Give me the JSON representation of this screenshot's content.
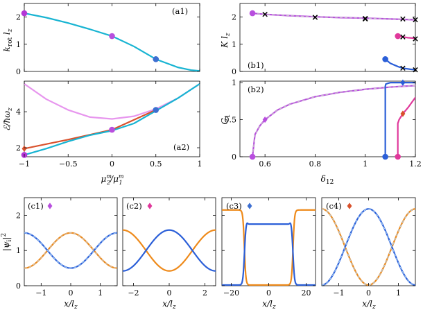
{
  "colors": {
    "cyan": "#18b4d2",
    "purple": "#b437d6",
    "magenta": "#e0389b",
    "violet": "#b84fde",
    "violet_dash": "#c8c8c8",
    "lightpink": "#e796ee",
    "orange": "#ee8a1a",
    "orange_red": "#d9512c",
    "blue": "#2b5fd8",
    "blue_dash": "#a9d0f5",
    "mid_blue": "#3d6fd1",
    "cross": "#000000"
  },
  "chart_data": [
    {
      "id": "a1",
      "type": "line",
      "panel_label": "(a1)",
      "xlim": [
        -1,
        1
      ],
      "ylim": [
        0,
        2.5
      ],
      "xticks": [
        -1,
        -0.5,
        0,
        0.5,
        1
      ],
      "yticks": [
        0,
        1,
        2
      ],
      "ytick_labels": [
        "0",
        "1",
        "2"
      ],
      "xlabel": "",
      "ylabel": "k_rot l_z",
      "series": [
        {
          "name": "k_rot",
          "color_key": "cyan",
          "width": 2.2,
          "x": [
            -1,
            -0.75,
            -0.5,
            -0.25,
            0,
            0.25,
            0.5,
            0.75,
            0.9,
            1
          ],
          "y": [
            2.14,
            1.98,
            1.78,
            1.55,
            1.3,
            0.92,
            0.45,
            0.15,
            0.05,
            0.02
          ]
        }
      ],
      "markers": [
        {
          "x": -1,
          "y": 2.14,
          "shape": "circle",
          "color_key": "purple"
        },
        {
          "x": 0,
          "y": 1.3,
          "shape": "circle",
          "color_key": "violet"
        },
        {
          "x": 0.5,
          "y": 0.45,
          "shape": "circle",
          "color_key": "mid_blue"
        }
      ]
    },
    {
      "id": "a2",
      "type": "line",
      "panel_label": "(a2)",
      "xlim": [
        -1,
        1
      ],
      "ylim": [
        1.5,
        5.7
      ],
      "xticks": [
        -1,
        -0.5,
        0,
        0.5,
        1
      ],
      "yticks": [
        2,
        4
      ],
      "xtick_labels": [
        "-1",
        "-0.5",
        "0",
        "0.5",
        "1"
      ],
      "ytick_labels": [
        "2",
        "4"
      ],
      "xlabel": "μ_2^m/μ_1^m",
      "ylabel": "ℰ/ħω_z",
      "series": [
        {
          "name": "upper",
          "color_key": "lightpink",
          "width": 2.2,
          "x": [
            -1,
            -0.75,
            -0.5,
            -0.25,
            0,
            0.25,
            0.5,
            0.75,
            1
          ],
          "y": [
            5.55,
            4.7,
            4.1,
            3.7,
            3.6,
            3.75,
            4.15,
            4.75,
            5.55
          ]
        },
        {
          "name": "lower-orange",
          "color_key": "orange_red",
          "width": 2.2,
          "x": [
            -1,
            -0.5,
            0,
            0.5
          ],
          "y": [
            1.95,
            2.45,
            3.0,
            4.1
          ]
        },
        {
          "name": "lower-cyan",
          "color_key": "cyan",
          "width": 2.2,
          "x": [
            -1,
            -0.75,
            -0.5,
            -0.25,
            0,
            0.25,
            0.5,
            0.75,
            1
          ],
          "y": [
            1.6,
            1.95,
            2.35,
            2.7,
            2.95,
            3.35,
            4.05,
            4.75,
            5.55
          ]
        }
      ],
      "markers": [
        {
          "x": -1,
          "y": 1.95,
          "shape": "diamond",
          "color_key": "orange_red"
        },
        {
          "x": -1,
          "y": 1.6,
          "shape": "circle",
          "color_key": "purple"
        },
        {
          "x": 0,
          "y": 3.0,
          "shape": "circle",
          "color_key": "violet"
        },
        {
          "x": 0.5,
          "y": 4.1,
          "shape": "circle",
          "color_key": "mid_blue"
        }
      ]
    },
    {
      "id": "b1",
      "type": "line",
      "panel_label": "(b1)",
      "xlim": [
        0.5,
        1.2
      ],
      "ylim": [
        0,
        2.5
      ],
      "xticks": [
        0.6,
        0.8,
        1,
        1.2
      ],
      "yticks": [
        0,
        1,
        2
      ],
      "ytick_labels": [
        "0",
        "1",
        "2"
      ],
      "xlabel": "",
      "ylabel": "K l_z",
      "series": [
        {
          "name": "violet",
          "color_key": "violet",
          "dash_key": "violet_dash",
          "width": 2.2,
          "x": [
            0.55,
            0.6,
            0.7,
            0.8,
            0.9,
            1.0,
            1.1,
            1.2
          ],
          "y": [
            2.14,
            2.1,
            2.05,
            2.01,
            1.98,
            1.96,
            1.93,
            1.9
          ]
        },
        {
          "name": "magenta",
          "color_key": "magenta",
          "width": 2.2,
          "x": [
            1.13,
            1.15,
            1.17,
            1.2
          ],
          "y": [
            1.3,
            1.27,
            1.24,
            1.22
          ]
        },
        {
          "name": "blue",
          "color_key": "blue",
          "width": 2.2,
          "x": [
            1.08,
            1.1,
            1.13,
            1.15,
            1.18,
            1.2
          ],
          "y": [
            0.45,
            0.3,
            0.18,
            0.12,
            0.08,
            0.06
          ]
        }
      ],
      "markers": [
        {
          "x": 0.55,
          "y": 2.14,
          "shape": "circle",
          "color_key": "violet"
        },
        {
          "x": 1.13,
          "y": 1.3,
          "shape": "circle",
          "color_key": "magenta"
        },
        {
          "x": 1.08,
          "y": 0.45,
          "shape": "circle",
          "color_key": "blue"
        },
        {
          "x": 0.6,
          "y": 2.1,
          "shape": "cross",
          "color_key": "cross"
        },
        {
          "x": 0.8,
          "y": 1.99,
          "shape": "cross",
          "color_key": "cross"
        },
        {
          "x": 1.0,
          "y": 1.95,
          "shape": "cross",
          "color_key": "cross"
        },
        {
          "x": 1.0,
          "y": 1.93,
          "shape": "cross",
          "color_key": "cross"
        },
        {
          "x": 1.15,
          "y": 1.93,
          "shape": "cross",
          "color_key": "cross"
        },
        {
          "x": 1.2,
          "y": 1.9,
          "shape": "cross",
          "color_key": "cross"
        },
        {
          "x": 1.15,
          "y": 1.27,
          "shape": "cross",
          "color_key": "cross"
        },
        {
          "x": 1.2,
          "y": 1.2,
          "shape": "cross",
          "color_key": "cross"
        },
        {
          "x": 1.15,
          "y": 0.12,
          "shape": "cross",
          "color_key": "cross"
        },
        {
          "x": 1.2,
          "y": 0.06,
          "shape": "cross",
          "color_key": "cross"
        }
      ]
    },
    {
      "id": "b2",
      "type": "line",
      "panel_label": "(b2)",
      "xlim": [
        0.5,
        1.2
      ],
      "ylim": [
        0,
        1.02
      ],
      "xticks": [
        0.6,
        0.8,
        1,
        1.2
      ],
      "yticks": [
        0,
        0.5,
        1
      ],
      "xtick_labels": [
        "0.6",
        "0.8",
        "1",
        "1.2"
      ],
      "ytick_labels": [
        "0",
        "0.5",
        "1"
      ],
      "xlabel": "δ_12",
      "ylabel": "C_1",
      "series": [
        {
          "name": "violet",
          "color_key": "violet",
          "dash_key": "violet_dash",
          "width": 2.2,
          "x": [
            0.55,
            0.56,
            0.58,
            0.6,
            0.65,
            0.7,
            0.8,
            0.9,
            1.0,
            1.1,
            1.2
          ],
          "y": [
            0,
            0.3,
            0.42,
            0.5,
            0.63,
            0.71,
            0.81,
            0.87,
            0.91,
            0.94,
            0.96
          ]
        },
        {
          "name": "blue",
          "color_key": "blue",
          "width": 2.2,
          "x": [
            1.08,
            1.08,
            1.082,
            1.09,
            1.1,
            1.15,
            1.2
          ],
          "y": [
            0,
            0.95,
            0.98,
            0.99,
            1.0,
            1.0,
            1.0
          ]
        },
        {
          "name": "magenta",
          "color_key": "magenta",
          "width": 2.2,
          "x": [
            1.13,
            1.13,
            1.135,
            1.15,
            1.17,
            1.2
          ],
          "y": [
            0,
            0.45,
            0.5,
            0.58,
            0.66,
            0.8
          ]
        }
      ],
      "markers": [
        {
          "x": 0.55,
          "y": 0,
          "shape": "circle",
          "color_key": "violet"
        },
        {
          "x": 0.6,
          "y": 0.5,
          "shape": "diamond",
          "color_key": "violet"
        },
        {
          "x": 1.08,
          "y": 0,
          "shape": "circle",
          "color_key": "blue"
        },
        {
          "x": 1.15,
          "y": 1.0,
          "shape": "diamond",
          "color_key": "blue"
        },
        {
          "x": 1.13,
          "y": 0,
          "shape": "circle",
          "color_key": "magenta"
        },
        {
          "x": 1.15,
          "y": 0.58,
          "shape": "diamond",
          "color_key": "orange_red"
        }
      ]
    },
    {
      "id": "c1",
      "type": "line",
      "panel_label": "(c1)",
      "label_marker": {
        "shape": "diamond",
        "color_key": "violet"
      },
      "xlim": [
        -1.57,
        1.57
      ],
      "ylim": [
        0,
        2.5
      ],
      "xticks": [
        -1,
        0,
        1
      ],
      "yticks": [
        0,
        1,
        2
      ],
      "xtick_labels": [
        "-1",
        "0",
        "1"
      ],
      "ytick_labels": [
        "0",
        "1",
        "2"
      ],
      "xlabel": "x/l_z",
      "ylabel": "|ψ_i|^2",
      "series": [
        {
          "name": "orange",
          "color_key": "orange",
          "dash_key": "violet_dash",
          "width": 2.2,
          "fn": {
            "kind": "cos",
            "mid": 1.0,
            "amp": 0.5,
            "k": 2.0
          }
        },
        {
          "name": "blue",
          "color_key": "blue",
          "dash_key": "blue_dash",
          "width": 2.2,
          "fn": {
            "kind": "cos",
            "mid": 1.0,
            "amp": -0.5,
            "k": 2.0
          }
        }
      ]
    },
    {
      "id": "c2",
      "type": "line",
      "panel_label": "(c2)",
      "label_marker": {
        "shape": "diamond",
        "color_key": "magenta"
      },
      "xlim": [
        -2.6,
        2.6
      ],
      "ylim": [
        0,
        2.5
      ],
      "xticks": [
        -2,
        0,
        2
      ],
      "yticks": [
        0,
        1,
        2
      ],
      "xtick_labels": [
        "-2",
        "0",
        "2"
      ],
      "ytick_labels": [],
      "xlabel": "x/l_z",
      "ylabel": "",
      "series": [
        {
          "name": "orange",
          "color_key": "orange",
          "width": 2.2,
          "fn": {
            "kind": "cos",
            "mid": 1.0,
            "amp": -0.58,
            "k": 1.21
          }
        },
        {
          "name": "blue",
          "color_key": "blue",
          "width": 2.2,
          "fn": {
            "kind": "cos",
            "mid": 1.0,
            "amp": 0.58,
            "k": 1.21
          }
        }
      ]
    },
    {
      "id": "c3",
      "type": "line",
      "panel_label": "(c3)",
      "label_marker": {
        "shape": "diamond",
        "color_key": "mid_blue"
      },
      "xlim": [
        -25,
        25
      ],
      "ylim": [
        0,
        2.5
      ],
      "xticks": [
        -20,
        0,
        20
      ],
      "yticks": [
        0,
        1,
        2
      ],
      "xtick_labels": [
        "-20",
        "0",
        "20"
      ],
      "ytick_labels": [],
      "xlabel": "x/l_z",
      "ylabel": "",
      "series": [
        {
          "name": "orange",
          "color_key": "orange",
          "width": 2.2,
          "fn": {
            "kind": "domain",
            "inside": 0.02,
            "outside": 2.15,
            "edge": 13,
            "w": 0.8
          }
        },
        {
          "name": "blue",
          "color_key": "blue",
          "width": 2.2,
          "fn": {
            "kind": "domain",
            "inside": 1.75,
            "outside": 0.02,
            "edge": 13,
            "w": 0.8,
            "hump": 0.08
          }
        }
      ]
    },
    {
      "id": "c4",
      "type": "line",
      "panel_label": "(c4)",
      "label_marker": {
        "shape": "diamond",
        "color_key": "orange_red"
      },
      "xlim": [
        -1.57,
        1.57
      ],
      "ylim": [
        0,
        2.5
      ],
      "xticks": [
        -1,
        0,
        1
      ],
      "yticks": [
        0,
        1,
        2
      ],
      "xtick_labels": [
        "-1",
        "0",
        "1"
      ],
      "ytick_labels": [],
      "xlabel": "x/l_z",
      "ylabel": "",
      "series": [
        {
          "name": "orange",
          "color_key": "orange",
          "dash_key": "blue_dash",
          "width": 2.2,
          "fn": {
            "kind": "cos",
            "mid": 1.1,
            "amp": -1.08,
            "k": 2.0
          }
        },
        {
          "name": "blue",
          "color_key": "blue",
          "dash_key": "blue_dash",
          "width": 2.2,
          "fn": {
            "kind": "cos",
            "mid": 1.1,
            "amp": 1.08,
            "k": 2.0
          }
        }
      ]
    }
  ]
}
